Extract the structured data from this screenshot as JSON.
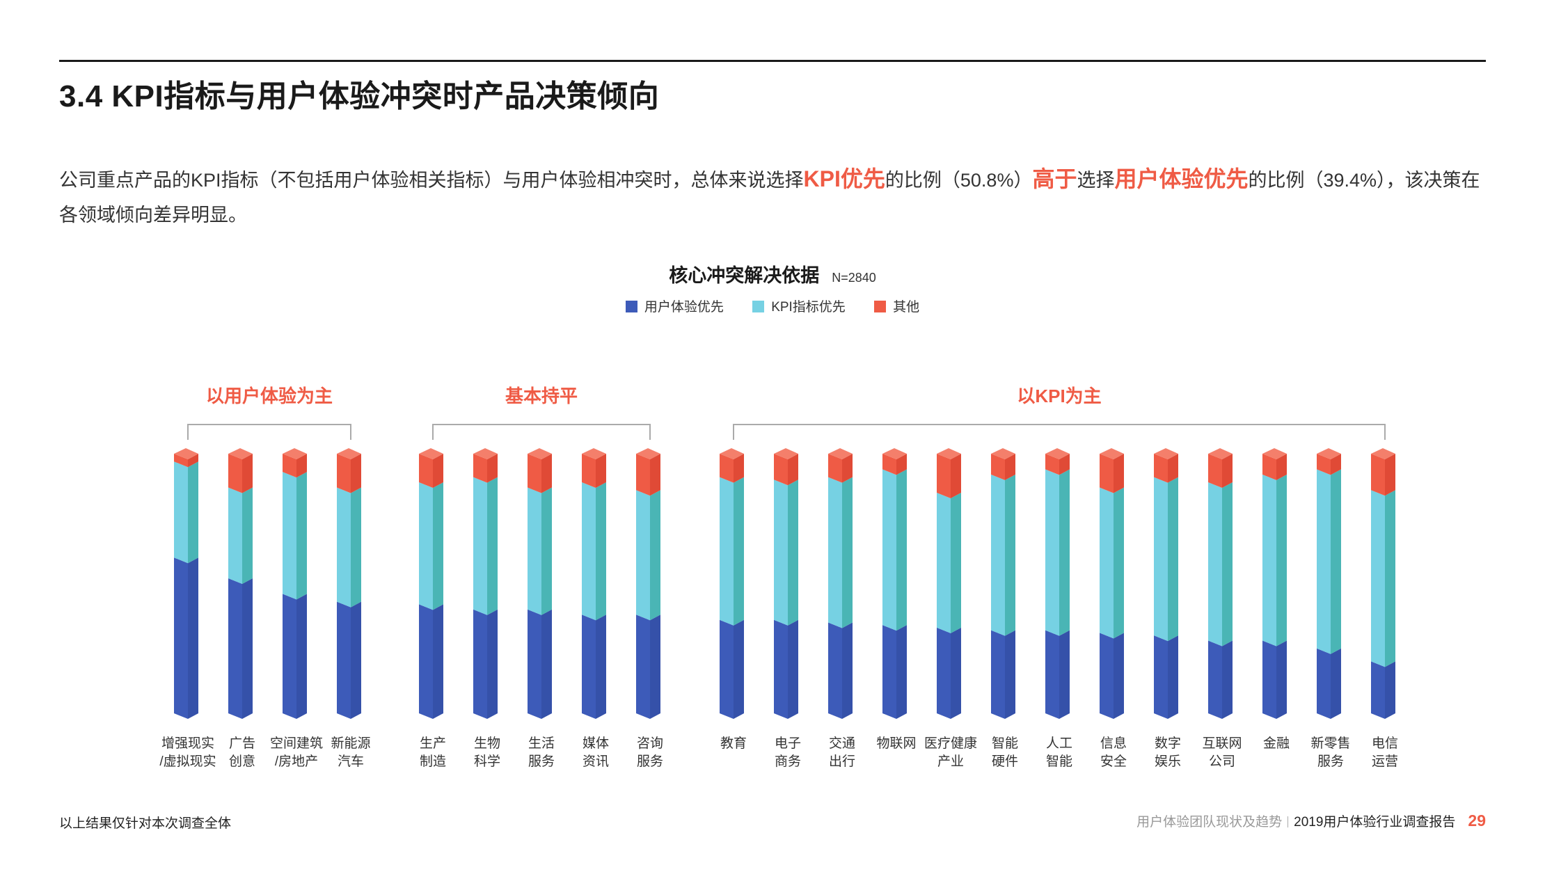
{
  "header": {
    "title": "3.4 KPI指标与用户体验冲突时产品决策倾向"
  },
  "intro": {
    "p1": "公司重点产品的KPI指标（不包括用户体验相关指标）与用户体验相冲突时，总体来说选择",
    "hl1": "KPI优先",
    "p2": "的比例（50.8%）",
    "hl2": "高于",
    "p3": "选择",
    "hl3": "用户体验优先",
    "p4": "的比例（39.4%），该决策在各领域倾向差异明显。"
  },
  "chart_title": {
    "title": "核心冲突解决依据",
    "n": "N=2840"
  },
  "legend": [
    {
      "label": "用户体验优先",
      "color": "#3d5bb9"
    },
    {
      "label": "KPI指标优先",
      "color": "#76d1e3"
    },
    {
      "label": "其他",
      "color": "#ef5b45"
    }
  ],
  "chart_data": {
    "type": "bar",
    "stacked": true,
    "orientation": "vertical",
    "groups": [
      {
        "label": "以用户体验为主",
        "members": [
          "增强现实/虚拟现实",
          "广告创意",
          "空间建筑/房地产",
          "新能源汽车"
        ]
      },
      {
        "label": "基本持平",
        "members": [
          "生产制造",
          "生物科学",
          "生活服务",
          "媒体资讯",
          "咨询服务"
        ]
      },
      {
        "label": "以KPI为主",
        "members": [
          "教育",
          "电子商务",
          "交通出行",
          "物联网",
          "医疗健康产业",
          "智能硬件",
          "人工智能",
          "信息安全",
          "数字娱乐",
          "互联网公司",
          "金融",
          "新零售服务",
          "电信运营"
        ]
      }
    ],
    "categories": [
      "增强现实/虚拟现实",
      "广告创意",
      "空间建筑/房地产",
      "新能源汽车",
      "生产制造",
      "生物科学",
      "生活服务",
      "媒体资讯",
      "咨询服务",
      "教育",
      "电子商务",
      "交通出行",
      "物联网",
      "医疗健康产业",
      "智能硬件",
      "人工智能",
      "信息安全",
      "数字娱乐",
      "互联网公司",
      "金融",
      "新零售服务",
      "电信运营"
    ],
    "category_labels": [
      [
        "增强现实",
        "/虚拟现实"
      ],
      [
        "广告",
        "创意"
      ],
      [
        "空间建筑",
        "/房地产"
      ],
      [
        "新能源",
        "汽车"
      ],
      [
        "生产",
        "制造"
      ],
      [
        "生物",
        "科学"
      ],
      [
        "生活",
        "服务"
      ],
      [
        "媒体",
        "资讯"
      ],
      [
        "咨询",
        "服务"
      ],
      [
        "教育",
        ""
      ],
      [
        "电子",
        "商务"
      ],
      [
        "交通",
        "出行"
      ],
      [
        "物联网",
        ""
      ],
      [
        "医疗健康",
        "产业"
      ],
      [
        "智能",
        "硬件"
      ],
      [
        "人工",
        "智能"
      ],
      [
        "信息",
        "安全"
      ],
      [
        "数字",
        "娱乐"
      ],
      [
        "互联网",
        "公司"
      ],
      [
        "金融",
        ""
      ],
      [
        "新零售",
        "服务"
      ],
      [
        "电信",
        "运营"
      ]
    ],
    "series": [
      {
        "name": "用户体验优先",
        "values": [
          60,
          52,
          46,
          43,
          42,
          40,
          40,
          38,
          38,
          36,
          36,
          35,
          34,
          33,
          32,
          32,
          31,
          30,
          28,
          28,
          25,
          20
        ]
      },
      {
        "name": "KPI指标优先",
        "values": [
          37,
          35,
          47,
          44,
          47,
          51,
          47,
          51,
          48,
          55,
          54,
          56,
          60,
          52,
          60,
          62,
          56,
          61,
          61,
          64,
          69,
          66
        ]
      },
      {
        "name": "其他",
        "values": [
          3,
          13,
          7,
          13,
          11,
          9,
          13,
          11,
          14,
          9,
          10,
          9,
          6,
          15,
          8,
          6,
          13,
          9,
          11,
          8,
          6,
          14
        ]
      }
    ],
    "ylim": [
      0,
      100
    ]
  },
  "footer": {
    "note": "以上结果仅针对本次调查全体",
    "section": "用户体验团队现状及趋势",
    "report": "2019用户体验行业调查报告",
    "page": "29"
  }
}
